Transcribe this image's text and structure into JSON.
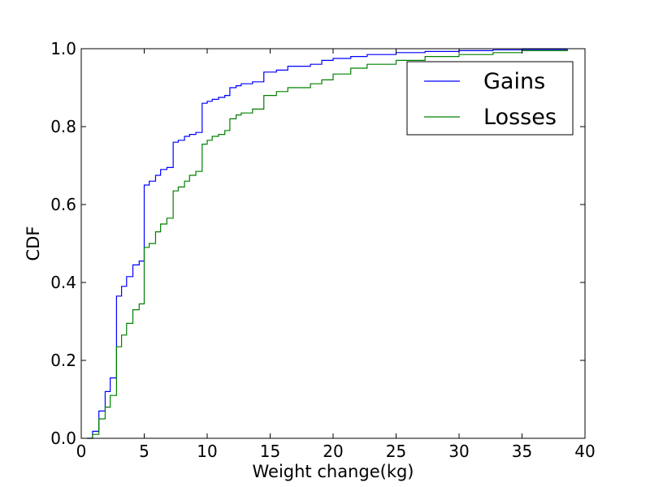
{
  "chart_data": {
    "type": "line",
    "step": true,
    "title": "",
    "xlabel": "Weight change(kg)",
    "ylabel": "CDF",
    "xlim": [
      0,
      40
    ],
    "ylim": [
      0,
      1.0
    ],
    "xticks": [
      0,
      5,
      10,
      15,
      20,
      25,
      30,
      35,
      40
    ],
    "yticks": [
      0.0,
      0.2,
      0.4,
      0.6,
      0.8,
      1.0
    ],
    "xtick_labels": [
      "0",
      "5",
      "10",
      "15",
      "20",
      "25",
      "30",
      "35",
      "40"
    ],
    "ytick_labels": [
      "0.0",
      "0.2",
      "0.4",
      "0.6",
      "0.8",
      "1.0"
    ],
    "grid": false,
    "legend_position": "top-right",
    "series": [
      {
        "name": "Gains",
        "color": "#0000ff",
        "x": [
          0.45,
          0.9,
          1.4,
          1.9,
          2.3,
          2.8,
          3.2,
          3.6,
          4.1,
          4.6,
          5.0,
          5.4,
          5.9,
          6.3,
          6.8,
          7.3,
          7.7,
          8.2,
          8.6,
          9.1,
          9.6,
          10.0,
          10.4,
          10.9,
          11.4,
          11.8,
          12.3,
          12.7,
          13.6,
          14.5,
          15.5,
          16.4,
          18.2,
          19.1,
          20.0,
          21.4,
          22.7,
          25.0,
          27.3,
          30.0,
          32.7,
          35.0,
          38.6
        ],
        "y": [
          0.0,
          0.018,
          0.07,
          0.12,
          0.155,
          0.365,
          0.39,
          0.415,
          0.445,
          0.455,
          0.65,
          0.66,
          0.675,
          0.69,
          0.695,
          0.76,
          0.765,
          0.775,
          0.78,
          0.785,
          0.86,
          0.865,
          0.87,
          0.875,
          0.88,
          0.9,
          0.905,
          0.91,
          0.915,
          0.94,
          0.945,
          0.955,
          0.96,
          0.97,
          0.975,
          0.98,
          0.985,
          0.99,
          0.993,
          0.995,
          0.997,
          0.998,
          1.0
        ]
      },
      {
        "name": "Losses",
        "color": "#008000",
        "x": [
          0.45,
          0.9,
          1.4,
          1.9,
          2.3,
          2.8,
          3.2,
          3.6,
          4.1,
          4.6,
          5.0,
          5.4,
          5.9,
          6.3,
          6.8,
          7.3,
          7.7,
          8.2,
          8.6,
          9.1,
          9.6,
          10.0,
          10.4,
          10.9,
          11.4,
          11.8,
          12.3,
          12.7,
          13.6,
          14.5,
          15.5,
          16.4,
          18.2,
          19.1,
          20.0,
          21.4,
          22.7,
          25.0,
          27.3,
          30.0,
          32.7,
          35.0,
          38.6
        ],
        "y": [
          0.0,
          0.01,
          0.05,
          0.08,
          0.11,
          0.235,
          0.265,
          0.295,
          0.33,
          0.345,
          0.49,
          0.5,
          0.53,
          0.55,
          0.565,
          0.635,
          0.645,
          0.66,
          0.675,
          0.685,
          0.755,
          0.765,
          0.775,
          0.78,
          0.79,
          0.82,
          0.83,
          0.835,
          0.845,
          0.88,
          0.89,
          0.9,
          0.91,
          0.92,
          0.935,
          0.95,
          0.96,
          0.97,
          0.98,
          0.985,
          0.99,
          0.995,
          1.0
        ]
      }
    ]
  }
}
